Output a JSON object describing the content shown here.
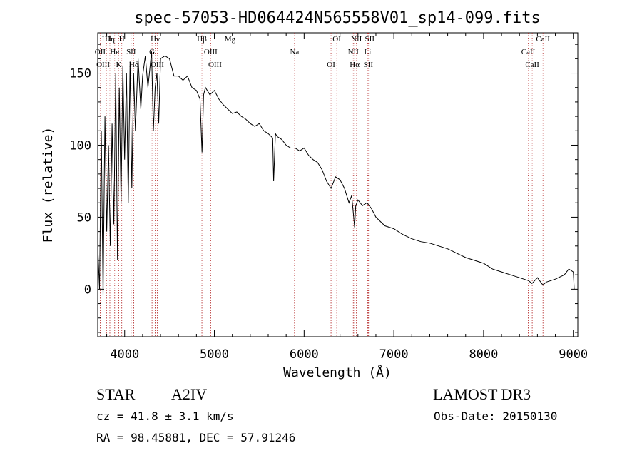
{
  "chart_data": {
    "type": "line",
    "title": "spec-57053-HD064424N565558V01_sp14-099.fits",
    "xlabel": "Wavelength (Å)",
    "ylabel": "Flux (relative)",
    "xlim": [
      3700,
      9050
    ],
    "ylim": [
      -33,
      178
    ],
    "x_ticks": [
      4000,
      5000,
      6000,
      7000,
      8000,
      9000
    ],
    "x_tick_labels": [
      "4000",
      "5000",
      "6000",
      "7000",
      "8000",
      "9000"
    ],
    "y_ticks": [
      0,
      50,
      100,
      150
    ],
    "y_tick_labels": [
      "0",
      "50",
      "100",
      "150"
    ],
    "line_color": "#000000",
    "marker_color": "#b22222",
    "series": [
      {
        "name": "flux",
        "x": [
          3700,
          3720,
          3740,
          3760,
          3780,
          3800,
          3820,
          3840,
          3860,
          3880,
          3900,
          3920,
          3940,
          3960,
          3980,
          4000,
          4020,
          4040,
          4060,
          4080,
          4100,
          4120,
          4150,
          4180,
          4200,
          4230,
          4260,
          4300,
          4320,
          4340,
          4360,
          4380,
          4400,
          4450,
          4500,
          4550,
          4600,
          4650,
          4700,
          4750,
          4800,
          4840,
          4862,
          4880,
          4900,
          4950,
          5000,
          5050,
          5100,
          5150,
          5200,
          5250,
          5300,
          5350,
          5400,
          5450,
          5500,
          5550,
          5600,
          5650,
          5660,
          5680,
          5700,
          5750,
          5800,
          5850,
          5900,
          5950,
          6000,
          6050,
          6100,
          6150,
          6200,
          6250,
          6300,
          6350,
          6400,
          6450,
          6500,
          6530,
          6550,
          6563,
          6575,
          6600,
          6650,
          6700,
          6750,
          6800,
          6900,
          7000,
          7100,
          7200,
          7300,
          7400,
          7500,
          7600,
          7700,
          7800,
          7900,
          8000,
          8100,
          8200,
          8300,
          8400,
          8500,
          8540,
          8600,
          8660,
          8700,
          8800,
          8900,
          8950,
          9000,
          9010
        ],
        "y": [
          30,
          0,
          110,
          -5,
          120,
          40,
          100,
          30,
          115,
          45,
          150,
          20,
          140,
          60,
          155,
          90,
          150,
          60,
          158,
          70,
          150,
          110,
          160,
          125,
          148,
          162,
          140,
          165,
          110,
          140,
          150,
          115,
          160,
          162,
          160,
          148,
          148,
          145,
          148,
          140,
          138,
          132,
          95,
          135,
          140,
          135,
          138,
          132,
          128,
          125,
          122,
          123,
          120,
          118,
          115,
          113,
          115,
          110,
          108,
          105,
          75,
          108,
          106,
          104,
          100,
          98,
          98,
          96,
          98,
          93,
          90,
          88,
          83,
          75,
          70,
          78,
          76,
          70,
          60,
          65,
          52,
          43,
          58,
          62,
          58,
          60,
          56,
          50,
          44,
          42,
          38,
          35,
          33,
          32,
          30,
          28,
          25,
          22,
          20,
          18,
          14,
          12,
          10,
          8,
          6,
          4,
          8,
          3,
          5,
          7,
          10,
          14,
          12,
          0
        ]
      }
    ],
    "lines": [
      {
        "label": "Hθ",
        "wavelength": 3798
      },
      {
        "label": "OII",
        "wavelength": 3727
      },
      {
        "label": "OIII",
        "wavelength": 3760
      },
      {
        "label": "Hη",
        "wavelength": 3835
      },
      {
        "label": "He",
        "wavelength": 3889
      },
      {
        "label": "K",
        "wavelength": 3934
      },
      {
        "label": "H",
        "wavelength": 3968
      },
      {
        "label": "SII",
        "wavelength": 4072
      },
      {
        "label": "Hδ",
        "wavelength": 4102
      },
      {
        "label": "Hγ",
        "wavelength": 4340
      },
      {
        "label": "G",
        "wavelength": 4305
      },
      {
        "label": "OIII",
        "wavelength": 4363
      },
      {
        "label": "Hβ",
        "wavelength": 4861
      },
      {
        "label": "OIII",
        "wavelength": 4959
      },
      {
        "label": "OIII",
        "wavelength": 5007
      },
      {
        "label": "Mg",
        "wavelength": 5175
      },
      {
        "label": "Na",
        "wavelength": 5893
      },
      {
        "label": "OI",
        "wavelength": 6300
      },
      {
        "label": "OI",
        "wavelength": 6364
      },
      {
        "label": "NII",
        "wavelength": 6548
      },
      {
        "label": "Hα",
        "wavelength": 6563
      },
      {
        "label": "NII",
        "wavelength": 6583
      },
      {
        "label": "Li",
        "wavelength": 6708
      },
      {
        "label": "SII",
        "wavelength": 6716
      },
      {
        "label": "SII",
        "wavelength": 6731
      },
      {
        "label": "CaII",
        "wavelength": 8498
      },
      {
        "label": "CaII",
        "wavelength": 8542
      },
      {
        "label": "CaII",
        "wavelength": 8662
      }
    ]
  },
  "info": {
    "object_type": "STAR",
    "spectral_class": "A2IV",
    "survey": "LAMOST DR3",
    "cz": "cz = 41.8 ± 3.1 km/s",
    "obs_date": "Obs-Date: 20150130",
    "radec": "RA =  98.45881, DEC =  57.91246"
  }
}
